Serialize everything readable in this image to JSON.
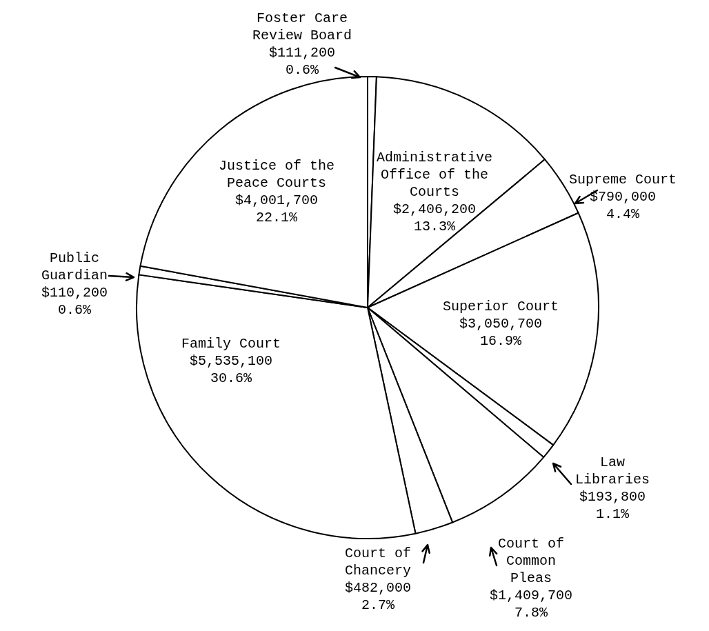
{
  "chart_data": {
    "type": "pie",
    "categories": [
      "Foster Care Review Board",
      "Administrative Office of the Courts",
      "Supreme Court",
      "Superior Court",
      "Law Libraries",
      "Court of Common Pleas",
      "Court of Chancery",
      "Family Court",
      "Public Guardian",
      "Justice of the Peace Courts"
    ],
    "values": [
      111200,
      2406200,
      790000,
      3050700,
      193800,
      1409700,
      482000,
      5535100,
      110200,
      4001700
    ],
    "value_labels": [
      "$111,200\n0.6%",
      "$2,406,200\n13.3%",
      "$790,000\n4.4%",
      "$3,050,700\n16.9%",
      "$193,800\n1.1%",
      "$1,409,700\n7.8%",
      "$482,000\n2.7%",
      "$5,535,100\n30.6%",
      "$110,200\n0.6%",
      "$4,001,700\n22.1%"
    ],
    "colors": [
      "#ffffff",
      "#ffffff",
      "#ffffff",
      "#ffffff",
      "#ffffff",
      "#ffffff",
      "#ffffff",
      "#ffffff",
      "#ffffff",
      "#ffffff"
    ]
  }
}
